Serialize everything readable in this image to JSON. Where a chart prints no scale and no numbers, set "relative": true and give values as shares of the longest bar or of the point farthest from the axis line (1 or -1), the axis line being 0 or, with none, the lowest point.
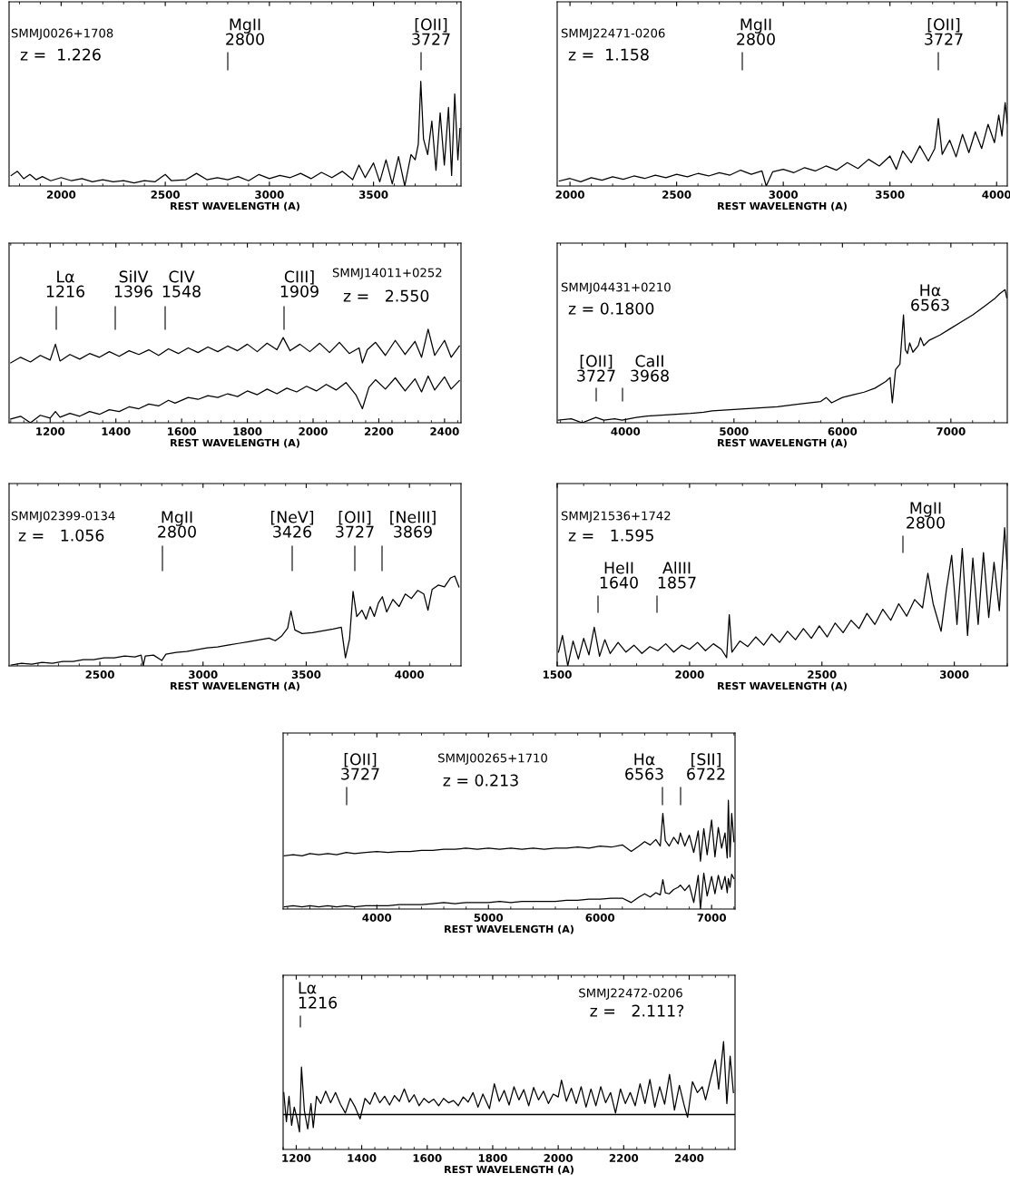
{
  "chart_data": [
    {
      "type": "line",
      "relative": true,
      "xlabel": "REST WAVELENGTH (A)",
      "xlim": [
        1750,
        3920
      ],
      "xticks": [
        2000,
        2500,
        3000,
        3500
      ],
      "grid": false,
      "annotations": [
        "SMMJ0026+1708",
        "z =  1.226",
        "MgII\n2800",
        "[OII]\n3727"
      ],
      "series": [
        {
          "color": "#000000",
          "x": [
            1760,
            1790,
            1820,
            1850,
            1880,
            1910,
            1950,
            2000,
            2050,
            2100,
            2150,
            2200,
            2250,
            2300,
            2350,
            2400,
            2450,
            2500,
            2530,
            2600,
            2650,
            2700,
            2750,
            2800,
            2850,
            2900,
            2950,
            3000,
            3050,
            3100,
            3150,
            3200,
            3250,
            3300,
            3350,
            3400,
            3430,
            3460,
            3500,
            3530,
            3560,
            3590,
            3620,
            3650,
            3680,
            3700,
            3715,
            3727,
            3740,
            3760,
            3780,
            3800,
            3820,
            3840,
            3860,
            3875,
            3890,
            3905,
            3915
          ],
          "values": [
            0.1,
            0.14,
            0.07,
            0.11,
            0.06,
            0.09,
            0.05,
            0.08,
            0.05,
            0.07,
            0.04,
            0.06,
            0.04,
            0.05,
            0.03,
            0.05,
            0.04,
            0.11,
            0.05,
            0.06,
            0.12,
            0.06,
            0.08,
            0.06,
            0.09,
            0.05,
            0.11,
            0.07,
            0.1,
            0.08,
            0.12,
            0.07,
            0.13,
            0.08,
            0.14,
            0.06,
            0.2,
            0.08,
            0.22,
            0.04,
            0.25,
            0.02,
            0.28,
            0.0,
            0.3,
            0.25,
            0.4,
            1.0,
            0.45,
            0.3,
            0.62,
            0.15,
            0.7,
            0.2,
            0.75,
            0.1,
            0.88,
            0.25,
            0.55
          ]
        }
      ]
    },
    {
      "type": "line",
      "relative": true,
      "xlabel": "REST WAVELENGTH (A)",
      "xlim": [
        1940,
        4050
      ],
      "xticks": [
        2000,
        2500,
        3000,
        3500,
        4000
      ],
      "grid": false,
      "annotations": [
        "SMMJ22471-0206",
        "z =  1.158",
        "MgII\n2800",
        "[OII]\n3727"
      ],
      "series": [
        {
          "color": "#000000",
          "x": [
            1950,
            2000,
            2050,
            2100,
            2150,
            2200,
            2250,
            2300,
            2350,
            2400,
            2450,
            2500,
            2550,
            2600,
            2650,
            2700,
            2750,
            2800,
            2850,
            2900,
            2920,
            2950,
            3000,
            3050,
            3100,
            3150,
            3200,
            3250,
            3300,
            3350,
            3400,
            3450,
            3500,
            3530,
            3560,
            3600,
            3640,
            3680,
            3710,
            3727,
            3745,
            3780,
            3810,
            3840,
            3870,
            3900,
            3930,
            3960,
            3990,
            4010,
            4025,
            4040,
            4050
          ],
          "values": [
            0.06,
            0.09,
            0.05,
            0.1,
            0.07,
            0.11,
            0.08,
            0.12,
            0.09,
            0.13,
            0.1,
            0.14,
            0.11,
            0.15,
            0.12,
            0.16,
            0.13,
            0.19,
            0.14,
            0.18,
            0.0,
            0.17,
            0.2,
            0.16,
            0.22,
            0.18,
            0.24,
            0.19,
            0.28,
            0.21,
            0.32,
            0.24,
            0.36,
            0.2,
            0.42,
            0.28,
            0.48,
            0.3,
            0.45,
            0.81,
            0.38,
            0.55,
            0.35,
            0.62,
            0.4,
            0.65,
            0.45,
            0.74,
            0.52,
            0.85,
            0.6,
            1.0,
            0.75
          ]
        }
      ]
    },
    {
      "type": "line",
      "relative": true,
      "xlabel": "REST WAVELENGTH (A)",
      "xlim": [
        1075,
        2450
      ],
      "xticks": [
        1200,
        1400,
        1600,
        1800,
        2000,
        2200,
        2400
      ],
      "grid": false,
      "annotations": [
        "SMMJ14011+0252",
        "z =   2.550",
        "Lα\n1216",
        "SiIV\n1396",
        "CIV\n1548",
        "CIII]\n1909"
      ],
      "series": [
        {
          "color": "#000000",
          "x": [
            1080,
            1110,
            1140,
            1170,
            1200,
            1216,
            1230,
            1260,
            1290,
            1320,
            1350,
            1380,
            1410,
            1440,
            1470,
            1500,
            1530,
            1560,
            1590,
            1620,
            1650,
            1680,
            1710,
            1740,
            1770,
            1800,
            1830,
            1860,
            1890,
            1909,
            1930,
            1960,
            1990,
            2020,
            2050,
            2080,
            2110,
            2140,
            2150,
            2165,
            2190,
            2220,
            2250,
            2280,
            2310,
            2330,
            2350,
            2370,
            2400,
            2420,
            2445
          ],
          "values": [
            0.64,
            0.7,
            0.65,
            0.72,
            0.67,
            0.84,
            0.66,
            0.73,
            0.68,
            0.74,
            0.7,
            0.76,
            0.71,
            0.77,
            0.73,
            0.78,
            0.72,
            0.79,
            0.74,
            0.8,
            0.75,
            0.81,
            0.76,
            0.82,
            0.77,
            0.84,
            0.76,
            0.85,
            0.78,
            0.91,
            0.77,
            0.84,
            0.76,
            0.85,
            0.75,
            0.86,
            0.74,
            0.8,
            0.64,
            0.78,
            0.86,
            0.72,
            0.88,
            0.73,
            0.87,
            0.7,
            1.0,
            0.72,
            0.88,
            0.7,
            0.82
          ]
        },
        {
          "color": "#000000",
          "x": [
            1080,
            1110,
            1140,
            1170,
            1200,
            1216,
            1230,
            1260,
            1290,
            1320,
            1350,
            1380,
            1410,
            1440,
            1470,
            1500,
            1530,
            1560,
            1580,
            1620,
            1650,
            1680,
            1710,
            1740,
            1770,
            1800,
            1830,
            1860,
            1890,
            1920,
            1950,
            1980,
            2010,
            2040,
            2070,
            2100,
            2130,
            2150,
            2170,
            2190,
            2220,
            2250,
            2280,
            2310,
            2330,
            2350,
            2370,
            2400,
            2420,
            2445
          ],
          "values": [
            0.04,
            0.07,
            0.0,
            0.08,
            0.05,
            0.12,
            0.06,
            0.1,
            0.07,
            0.12,
            0.09,
            0.14,
            0.12,
            0.17,
            0.15,
            0.2,
            0.18,
            0.24,
            0.21,
            0.27,
            0.25,
            0.29,
            0.27,
            0.31,
            0.28,
            0.34,
            0.3,
            0.36,
            0.31,
            0.37,
            0.33,
            0.39,
            0.34,
            0.41,
            0.35,
            0.43,
            0.3,
            0.15,
            0.38,
            0.46,
            0.36,
            0.48,
            0.34,
            0.47,
            0.33,
            0.5,
            0.35,
            0.49,
            0.36,
            0.45
          ]
        }
      ]
    },
    {
      "type": "line",
      "relative": true,
      "xlabel": "REST WAVELENGTH (A)",
      "xlim": [
        3370,
        7520
      ],
      "xticks": [
        4000,
        5000,
        6000,
        7000
      ],
      "grid": false,
      "annotations": [
        "SMMJ04431+0210",
        "z = 0.1800",
        "[OII]\n3727",
        "CaII\n3968",
        "Hα\n6563"
      ],
      "series": [
        {
          "color": "#000000",
          "x": [
            3380,
            3500,
            3600,
            3727,
            3800,
            3900,
            3968,
            4100,
            4200,
            4400,
            4600,
            4720,
            4800,
            5000,
            5200,
            5400,
            5600,
            5800,
            5850,
            5900,
            6000,
            6100,
            6200,
            6300,
            6400,
            6440,
            6460,
            6490,
            6530,
            6563,
            6580,
            6600,
            6620,
            6650,
            6700,
            6720,
            6750,
            6800,
            6900,
            7000,
            7100,
            7200,
            7300,
            7400,
            7450,
            7500,
            7515
          ],
          "values": [
            0.02,
            0.03,
            0.0,
            0.04,
            0.02,
            0.03,
            0.02,
            0.04,
            0.05,
            0.06,
            0.07,
            0.08,
            0.09,
            0.1,
            0.11,
            0.12,
            0.14,
            0.16,
            0.19,
            0.15,
            0.19,
            0.21,
            0.23,
            0.26,
            0.31,
            0.34,
            0.15,
            0.4,
            0.44,
            0.81,
            0.55,
            0.52,
            0.6,
            0.53,
            0.58,
            0.64,
            0.58,
            0.62,
            0.66,
            0.71,
            0.76,
            0.81,
            0.87,
            0.93,
            0.97,
            1.0,
            0.94
          ]
        }
      ]
    },
    {
      "type": "line",
      "relative": true,
      "xlabel": "REST WAVELENGTH (A)",
      "xlim": [
        2060,
        4250
      ],
      "xticks": [
        2500,
        3000,
        3500,
        4000
      ],
      "grid": false,
      "annotations": [
        "SMMJ02399-0134",
        "z =   1.056",
        "MgII\n2800",
        "[NeV]\n3426",
        "[OII]\n3727",
        "[NeIII]\n3869"
      ],
      "series": [
        {
          "color": "#000000",
          "x": [
            2070,
            2120,
            2170,
            2220,
            2270,
            2320,
            2370,
            2420,
            2470,
            2520,
            2570,
            2620,
            2670,
            2700,
            2710,
            2720,
            2760,
            2800,
            2820,
            2870,
            2920,
            2970,
            3020,
            3070,
            3120,
            3170,
            3220,
            3270,
            3320,
            3350,
            3380,
            3410,
            3426,
            3445,
            3480,
            3530,
            3580,
            3630,
            3670,
            3690,
            3710,
            3727,
            3745,
            3770,
            3790,
            3810,
            3830,
            3850,
            3869,
            3890,
            3920,
            3950,
            3980,
            4010,
            4040,
            4070,
            4090,
            4110,
            4140,
            4170,
            4200,
            4220,
            4240
          ],
          "values": [
            0.01,
            0.03,
            0.02,
            0.04,
            0.03,
            0.05,
            0.05,
            0.07,
            0.07,
            0.09,
            0.09,
            0.11,
            0.1,
            0.12,
            0.0,
            0.11,
            0.12,
            0.06,
            0.13,
            0.15,
            0.16,
            0.18,
            0.2,
            0.21,
            0.23,
            0.25,
            0.27,
            0.29,
            0.31,
            0.28,
            0.33,
            0.42,
            0.61,
            0.4,
            0.36,
            0.37,
            0.39,
            0.41,
            0.43,
            0.09,
            0.3,
            0.83,
            0.55,
            0.62,
            0.52,
            0.66,
            0.55,
            0.7,
            0.77,
            0.6,
            0.74,
            0.66,
            0.8,
            0.75,
            0.84,
            0.8,
            0.62,
            0.85,
            0.9,
            0.88,
            0.98,
            1.0,
            0.88
          ]
        }
      ]
    },
    {
      "type": "line",
      "relative": true,
      "xlabel": "REST WAVELENGTH (A)",
      "xlim": [
        1500,
        3200
      ],
      "xticks": [
        1500,
        2000,
        2500,
        3000
      ],
      "grid": false,
      "annotations": [
        "SMMJ21536+1742",
        "z =   1.595",
        "HeII\n1640",
        "AlIII\n1857",
        "MgII\n2800"
      ],
      "series": [
        {
          "color": "#000000",
          "x": [
            1505,
            1520,
            1540,
            1560,
            1580,
            1600,
            1620,
            1640,
            1660,
            1680,
            1700,
            1730,
            1760,
            1790,
            1820,
            1850,
            1880,
            1910,
            1940,
            1970,
            2000,
            2030,
            2060,
            2090,
            2120,
            2140,
            2150,
            2160,
            2190,
            2220,
            2250,
            2280,
            2310,
            2340,
            2370,
            2400,
            2430,
            2460,
            2490,
            2520,
            2550,
            2580,
            2610,
            2640,
            2670,
            2700,
            2730,
            2760,
            2790,
            2820,
            2850,
            2880,
            2900,
            2920,
            2950,
            2970,
            2990,
            3010,
            3030,
            3050,
            3070,
            3090,
            3110,
            3130,
            3150,
            3170,
            3190,
            3200
          ],
          "values": [
            0.1,
            0.22,
            0.0,
            0.18,
            0.05,
            0.2,
            0.08,
            0.28,
            0.07,
            0.19,
            0.09,
            0.17,
            0.1,
            0.15,
            0.09,
            0.14,
            0.11,
            0.16,
            0.1,
            0.15,
            0.12,
            0.17,
            0.11,
            0.16,
            0.12,
            0.06,
            0.37,
            0.1,
            0.18,
            0.14,
            0.21,
            0.15,
            0.23,
            0.17,
            0.25,
            0.19,
            0.27,
            0.2,
            0.29,
            0.21,
            0.31,
            0.24,
            0.33,
            0.27,
            0.38,
            0.3,
            0.41,
            0.33,
            0.45,
            0.36,
            0.48,
            0.42,
            0.67,
            0.45,
            0.25,
            0.55,
            0.8,
            0.3,
            0.85,
            0.22,
            0.78,
            0.3,
            0.82,
            0.35,
            0.75,
            0.4,
            1.0,
            0.7
          ]
        }
      ]
    },
    {
      "type": "line",
      "relative": true,
      "xlabel": "REST WAVELENGTH (A)",
      "xlim": [
        3160,
        7210
      ],
      "xticks": [
        4000,
        5000,
        6000,
        7000
      ],
      "grid": false,
      "annotations": [
        "[OII]\n3727",
        "SMMJ00265+1710",
        "z = 0.213",
        "Hα\n6563",
        "[SII]\n6722"
      ],
      "series": [
        {
          "color": "#000000",
          "x": [
            3170,
            3250,
            3330,
            3400,
            3480,
            3560,
            3640,
            3727,
            3800,
            3900,
            4000,
            4100,
            4200,
            4300,
            4400,
            4500,
            4600,
            4700,
            4800,
            4900,
            5000,
            5100,
            5200,
            5300,
            5400,
            5500,
            5600,
            5700,
            5800,
            5900,
            6000,
            6100,
            6200,
            6280,
            6350,
            6400,
            6450,
            6500,
            6540,
            6563,
            6585,
            6620,
            6660,
            6700,
            6720,
            6760,
            6800,
            6840,
            6880,
            6900,
            6930,
            6960,
            7000,
            7030,
            7060,
            7090,
            7120,
            7140,
            7150,
            7165,
            7180,
            7200
          ],
          "values": [
            0.49,
            0.5,
            0.49,
            0.51,
            0.5,
            0.51,
            0.5,
            0.52,
            0.51,
            0.52,
            0.53,
            0.52,
            0.53,
            0.53,
            0.54,
            0.54,
            0.55,
            0.55,
            0.56,
            0.55,
            0.56,
            0.55,
            0.56,
            0.55,
            0.56,
            0.55,
            0.56,
            0.56,
            0.57,
            0.56,
            0.58,
            0.57,
            0.59,
            0.53,
            0.58,
            0.62,
            0.59,
            0.64,
            0.58,
            0.88,
            0.63,
            0.58,
            0.66,
            0.6,
            0.7,
            0.58,
            0.68,
            0.52,
            0.72,
            0.44,
            0.74,
            0.5,
            0.82,
            0.48,
            0.75,
            0.56,
            0.7,
            0.47,
            1.0,
            0.48,
            0.88,
            0.62
          ]
        },
        {
          "color": "#000000",
          "x": [
            3170,
            3250,
            3330,
            3400,
            3480,
            3560,
            3640,
            3727,
            3800,
            3900,
            4000,
            4100,
            4200,
            4300,
            4400,
            4500,
            4600,
            4700,
            4800,
            4900,
            5000,
            5100,
            5200,
            5300,
            5400,
            5500,
            5600,
            5700,
            5800,
            5900,
            6000,
            6100,
            6200,
            6280,
            6350,
            6400,
            6450,
            6500,
            6540,
            6563,
            6585,
            6620,
            6660,
            6700,
            6720,
            6760,
            6800,
            6840,
            6880,
            6900,
            6930,
            6960,
            7000,
            7030,
            7060,
            7090,
            7120,
            7140,
            7150,
            7165,
            7180,
            7200
          ],
          "values": [
            0.02,
            0.03,
            0.02,
            0.03,
            0.02,
            0.03,
            0.02,
            0.03,
            0.02,
            0.03,
            0.03,
            0.03,
            0.04,
            0.04,
            0.04,
            0.05,
            0.06,
            0.05,
            0.06,
            0.06,
            0.06,
            0.07,
            0.06,
            0.07,
            0.07,
            0.07,
            0.07,
            0.08,
            0.08,
            0.09,
            0.09,
            0.1,
            0.1,
            0.06,
            0.11,
            0.14,
            0.11,
            0.15,
            0.13,
            0.27,
            0.15,
            0.14,
            0.18,
            0.2,
            0.22,
            0.17,
            0.22,
            0.06,
            0.31,
            0.0,
            0.33,
            0.12,
            0.3,
            0.14,
            0.31,
            0.18,
            0.3,
            0.15,
            0.28,
            0.2,
            0.32,
            0.28
          ]
        }
      ]
    },
    {
      "type": "line",
      "relative": true,
      "xlabel": "REST WAVELENGTH (A)",
      "xlim": [
        1160,
        2540
      ],
      "xticks": [
        1200,
        1400,
        1600,
        1800,
        2000,
        2200,
        2400
      ],
      "grid": false,
      "annotations": [
        "Lα\n1216",
        "SMMJ22472-0206",
        "z =   2.111?"
      ],
      "ref_lines": [
        {
          "axis": "y",
          "value": 0,
          "color": "#000000"
        }
      ],
      "series": [
        {
          "color": "#000000",
          "x": [
            1162,
            1170,
            1178,
            1186,
            1194,
            1202,
            1210,
            1216,
            1225,
            1235,
            1245,
            1252,
            1262,
            1275,
            1290,
            1305,
            1320,
            1335,
            1350,
            1365,
            1380,
            1395,
            1410,
            1425,
            1440,
            1455,
            1470,
            1485,
            1500,
            1515,
            1530,
            1545,
            1560,
            1575,
            1590,
            1605,
            1620,
            1635,
            1650,
            1665,
            1680,
            1695,
            1710,
            1725,
            1740,
            1755,
            1770,
            1790,
            1805,
            1820,
            1835,
            1850,
            1865,
            1880,
            1895,
            1910,
            1925,
            1940,
            1955,
            1970,
            1985,
            2000,
            2010,
            2025,
            2040,
            2055,
            2070,
            2085,
            2100,
            2115,
            2130,
            2145,
            2160,
            2175,
            2190,
            2205,
            2220,
            2235,
            2250,
            2265,
            2280,
            2295,
            2310,
            2325,
            2340,
            2355,
            2370,
            2385,
            2395,
            2410,
            2425,
            2440,
            2450,
            2465,
            2480,
            2490,
            2505,
            2515,
            2525,
            2535
          ],
          "values": [
            0.3,
            -0.1,
            0.25,
            -0.15,
            0.1,
            -0.05,
            -0.24,
            0.65,
            0.05,
            -0.2,
            0.15,
            -0.18,
            0.25,
            0.15,
            0.32,
            0.16,
            0.3,
            0.14,
            0.02,
            0.22,
            0.1,
            -0.06,
            0.22,
            0.14,
            0.3,
            0.16,
            0.25,
            0.13,
            0.26,
            0.18,
            0.35,
            0.17,
            0.27,
            0.12,
            0.22,
            0.16,
            0.21,
            0.12,
            0.22,
            0.16,
            0.19,
            0.12,
            0.24,
            0.17,
            0.3,
            0.1,
            0.28,
            0.08,
            0.42,
            0.18,
            0.33,
            0.13,
            0.38,
            0.2,
            0.34,
            0.12,
            0.37,
            0.2,
            0.32,
            0.15,
            0.28,
            0.24,
            0.47,
            0.18,
            0.36,
            0.15,
            0.38,
            0.1,
            0.35,
            0.12,
            0.38,
            0.16,
            0.3,
            0.02,
            0.35,
            0.15,
            0.3,
            0.12,
            0.42,
            0.15,
            0.48,
            0.1,
            0.38,
            0.14,
            0.55,
            0.06,
            0.4,
            0.12,
            -0.04,
            0.45,
            0.3,
            0.38,
            0.2,
            0.48,
            0.75,
            0.35,
            1.0,
            0.15,
            0.8,
            0.3
          ]
        }
      ]
    }
  ]
}
